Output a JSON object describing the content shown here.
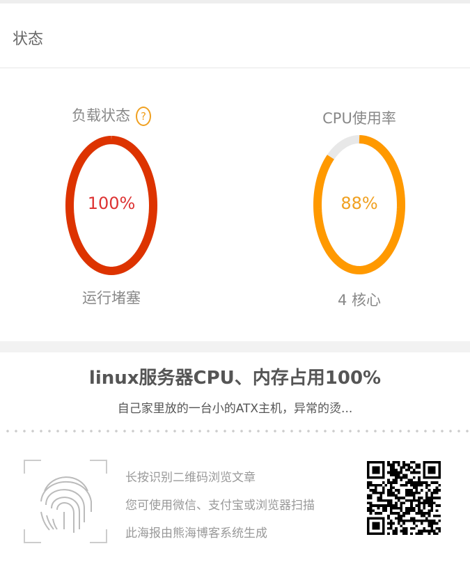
{
  "section": {
    "title": "状态"
  },
  "gauges": [
    {
      "label": "负载状态",
      "help": "?",
      "value_text": "100%",
      "value": 100,
      "sub": "运行堵塞",
      "color": "#dd3300"
    },
    {
      "label": "CPU使用率",
      "value_text": "88%",
      "value": 88,
      "sub": "4 核心",
      "color": "#ff9900"
    }
  ],
  "article": {
    "title": "linux服务器CPU、内存占用100%",
    "desc": "自己家里放的一台小的ATX主机，异常的烫..."
  },
  "share": {
    "lines": [
      "长按识别二维码浏览文章",
      "您可使用微信、支付宝或浏览器扫描",
      "此海报由熊海博客系统生成"
    ]
  },
  "icons": {
    "fingerprint": "fingerprint-icon",
    "qr": "qr-code"
  }
}
